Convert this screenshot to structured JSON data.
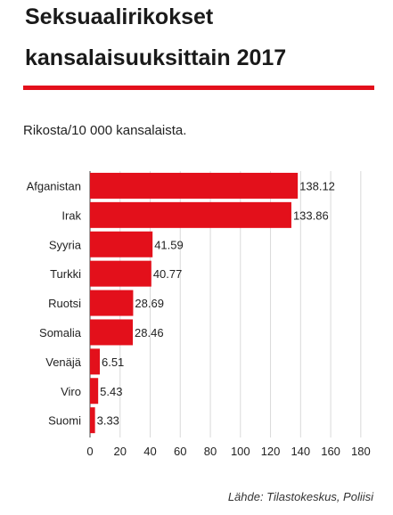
{
  "title_lines": [
    "Seksuaalirikokset",
    "kansalaisuuksittain 2017"
  ],
  "subtitle": "Rikosta/10 000 kansalaista.",
  "source": "Lähde: Tilastokeskus, Poliisi",
  "colors": {
    "bar": "#e3101b",
    "rule": "#e3101b",
    "grid": "#d9d9d9",
    "text": "#222222"
  },
  "chart_data": {
    "type": "bar",
    "orientation": "horizontal",
    "categories": [
      "Afganistan",
      "Irak",
      "Syyria",
      "Turkki",
      "Ruotsi",
      "Somalia",
      "Venäjä",
      "Viro",
      "Suomi"
    ],
    "values": [
      138.12,
      133.86,
      41.59,
      40.77,
      28.69,
      28.46,
      6.51,
      5.43,
      3.33
    ],
    "value_labels": [
      "138.12",
      "133.86",
      "41.59",
      "40.77",
      "28.69",
      "28.46",
      "6.51",
      "5.43",
      "3.33"
    ],
    "xlim": [
      0,
      180
    ],
    "xticks": [
      0,
      20,
      40,
      60,
      80,
      100,
      120,
      140,
      160,
      180
    ],
    "grid": true,
    "legend": "none"
  }
}
